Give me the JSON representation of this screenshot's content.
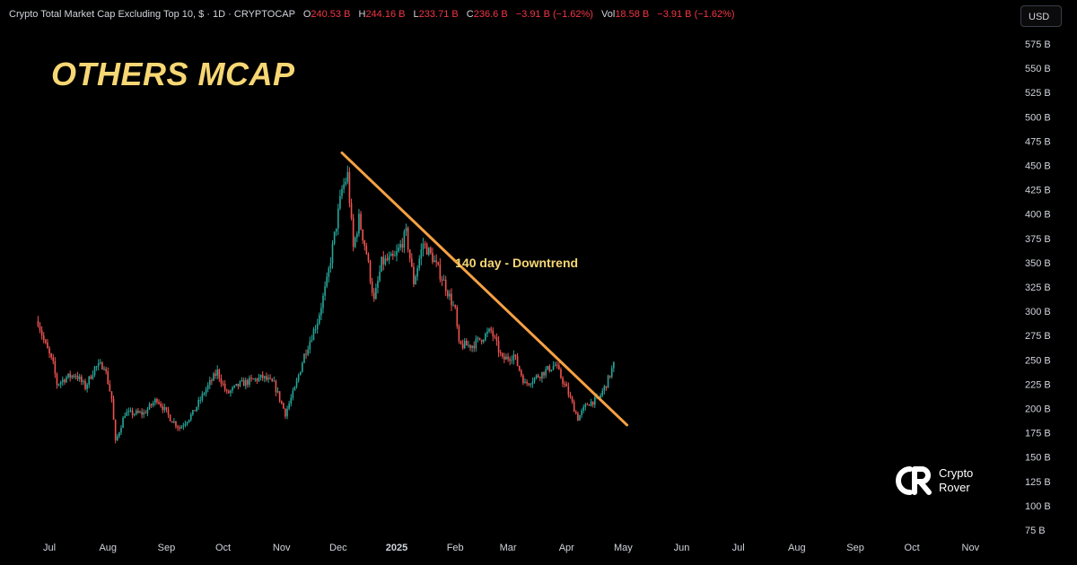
{
  "header": {
    "symbol": "Crypto Total Market Cap Excluding Top 10, $ · 1D · CRYPTOCAP",
    "open_label": "O",
    "open": "240.53 B",
    "high_label": "H",
    "high": "244.16 B",
    "low_label": "L",
    "low": "233.71 B",
    "close_label": "C",
    "close": "236.6 B",
    "change": "−3.91 B (−1.62%)",
    "vol_label": "Vol",
    "vol": "18.58 B",
    "vol_change": "−3.91 B (−1.62%)"
  },
  "currency_button": "USD",
  "overlay_title": "OTHERS MCAP",
  "logo": {
    "line1": "Crypto",
    "line2": "Rover",
    "icon": "crypto-rover-logo-icon"
  },
  "colors": {
    "up": "#26a69a",
    "down": "#ef5350",
    "trendline": "#f5a142",
    "accent_text": "#f7d774"
  },
  "chart_data": {
    "type": "candlestick",
    "title": "Crypto Total Market Cap Excluding Top 10, $ · 1D · CRYPTOCAP",
    "x_axis": {
      "ticks": [
        "Jul",
        "Aug",
        "Sep",
        "Oct",
        "Nov",
        "Dec",
        "2025",
        "Feb",
        "Mar",
        "Apr",
        "May",
        "Jun",
        "Jul",
        "Aug",
        "Sep",
        "Oct",
        "Nov"
      ],
      "bold_ticks": [
        "2025"
      ]
    },
    "y_axis": {
      "unit": "B",
      "ticks": [
        75,
        100,
        125,
        150,
        175,
        200,
        225,
        250,
        275,
        300,
        325,
        350,
        375,
        400,
        425,
        450,
        475,
        500,
        525,
        550,
        575
      ],
      "range": [
        60,
        590
      ]
    },
    "grid": false,
    "price_path": [
      [
        "2024-06-25",
        290
      ],
      [
        "2024-06-28",
        270
      ],
      [
        "2024-07-03",
        245
      ],
      [
        "2024-07-05",
        225
      ],
      [
        "2024-07-10",
        232
      ],
      [
        "2024-07-15",
        235
      ],
      [
        "2024-07-20",
        222
      ],
      [
        "2024-07-25",
        242
      ],
      [
        "2024-07-30",
        245
      ],
      [
        "2024-08-03",
        210
      ],
      [
        "2024-08-05",
        165
      ],
      [
        "2024-08-10",
        195
      ],
      [
        "2024-08-20",
        195
      ],
      [
        "2024-08-27",
        210
      ],
      [
        "2024-09-03",
        190
      ],
      [
        "2024-09-08",
        180
      ],
      [
        "2024-09-15",
        195
      ],
      [
        "2024-09-22",
        220
      ],
      [
        "2024-09-28",
        238
      ],
      [
        "2024-10-03",
        215
      ],
      [
        "2024-10-10",
        225
      ],
      [
        "2024-10-15",
        228
      ],
      [
        "2024-10-22",
        232
      ],
      [
        "2024-10-28",
        225
      ],
      [
        "2024-11-03",
        195
      ],
      [
        "2024-11-08",
        220
      ],
      [
        "2024-11-13",
        255
      ],
      [
        "2024-11-20",
        290
      ],
      [
        "2024-11-25",
        330
      ],
      [
        "2024-12-03",
        425
      ],
      [
        "2024-12-06",
        440
      ],
      [
        "2024-12-09",
        365
      ],
      [
        "2024-12-12",
        395
      ],
      [
        "2024-12-16",
        360
      ],
      [
        "2024-12-20",
        310
      ],
      [
        "2024-12-24",
        350
      ],
      [
        "2024-12-31",
        355
      ],
      [
        "2025-01-06",
        380
      ],
      [
        "2025-01-10",
        330
      ],
      [
        "2025-01-15",
        370
      ],
      [
        "2025-01-20",
        355
      ],
      [
        "2025-01-26",
        330
      ],
      [
        "2025-02-01",
        300
      ],
      [
        "2025-02-03",
        265
      ],
      [
        "2025-02-10",
        265
      ],
      [
        "2025-02-20",
        280
      ],
      [
        "2025-02-26",
        250
      ],
      [
        "2025-03-04",
        255
      ],
      [
        "2025-03-10",
        225
      ],
      [
        "2025-03-18",
        235
      ],
      [
        "2025-03-26",
        245
      ],
      [
        "2025-04-01",
        220
      ],
      [
        "2025-04-07",
        190
      ],
      [
        "2025-04-12",
        205
      ],
      [
        "2025-04-18",
        210
      ],
      [
        "2025-04-22",
        225
      ],
      [
        "2025-04-26",
        245
      ]
    ],
    "trendline": {
      "from": [
        "2024-12-03",
        463
      ],
      "to": [
        "2025-05-03",
        183
      ]
    },
    "annotation": {
      "text": "140 day - Downtrend",
      "x": "2025-02-20",
      "y": 350
    }
  }
}
